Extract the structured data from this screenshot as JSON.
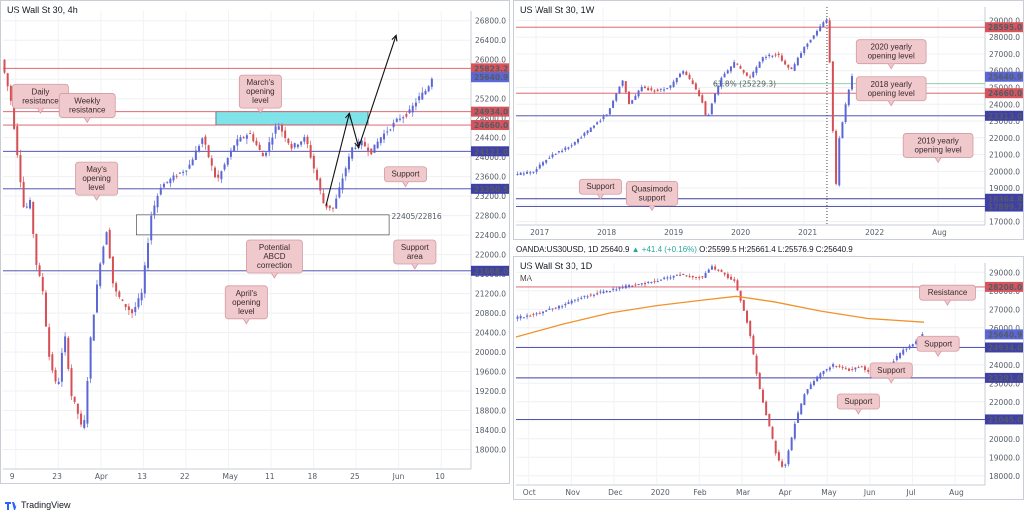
{
  "colors": {
    "bull": "#5b67d6",
    "bear": "#d64f54",
    "resistance_line": "#d8545c",
    "support_line": "#3f3fa8",
    "zone_fill": "#7fe3ea",
    "callout_fill": "#f0c9cd",
    "callout_border": "#d49aa1",
    "ma_line": "#f0932b",
    "fib_line": "#86c89a",
    "arrow": "#111111"
  },
  "footer": {
    "logo_text": "TradingView"
  },
  "chart_data": [
    {
      "id": "h4",
      "type": "candlestick",
      "title": "US Wall St 30, 4h",
      "x_ticks": [
        "9",
        "23",
        "Apr",
        "13",
        "22",
        "May",
        "11",
        "18",
        "25",
        "Jun",
        "10"
      ],
      "y_range": [
        17600,
        27000
      ],
      "y_ticks": [
        18000,
        18400,
        18800,
        19200,
        19600,
        20000,
        20400,
        20800,
        21200,
        21600,
        22000,
        22400,
        22800,
        23200,
        23600,
        24000,
        24400,
        24800,
        25200,
        25600,
        26000,
        26400,
        26800
      ],
      "path": [
        [
          0,
          26000
        ],
        [
          0.02,
          25200
        ],
        [
          0.035,
          24000
        ],
        [
          0.05,
          22800
        ],
        [
          0.06,
          23200
        ],
        [
          0.075,
          21800
        ],
        [
          0.09,
          21200
        ],
        [
          0.1,
          20000
        ],
        [
          0.12,
          19200
        ],
        [
          0.135,
          20400
        ],
        [
          0.15,
          19100
        ],
        [
          0.162,
          18800
        ],
        [
          0.175,
          18300
        ],
        [
          0.19,
          20200
        ],
        [
          0.21,
          21800
        ],
        [
          0.225,
          22500
        ],
        [
          0.24,
          21300
        ],
        [
          0.26,
          21000
        ],
        [
          0.28,
          20800
        ],
        [
          0.3,
          21200
        ],
        [
          0.32,
          22800
        ],
        [
          0.34,
          23400
        ],
        [
          0.37,
          23600
        ],
        [
          0.4,
          23800
        ],
        [
          0.43,
          24400
        ],
        [
          0.46,
          23500
        ],
        [
          0.5,
          24300
        ],
        [
          0.53,
          24500
        ],
        [
          0.56,
          24000
        ],
        [
          0.59,
          24700
        ],
        [
          0.62,
          24200
        ],
        [
          0.65,
          24400
        ],
        [
          0.67,
          23700
        ],
        [
          0.69,
          23000
        ],
        [
          0.71,
          22950
        ],
        [
          0.73,
          23600
        ],
        [
          0.75,
          24200
        ],
        [
          0.77,
          24300
        ],
        [
          0.79,
          24100
        ],
        [
          0.81,
          24400
        ],
        [
          0.83,
          24600
        ],
        [
          0.85,
          24800
        ],
        [
          0.87,
          24900
        ],
        [
          0.89,
          25200
        ],
        [
          0.91,
          25400
        ],
        [
          0.92,
          25640
        ]
      ],
      "levels": [
        {
          "value": 25823.2,
          "label": "25823.2",
          "kind": "resistance"
        },
        {
          "value": 25640.9,
          "label": "25640.9",
          "kind": "current"
        },
        {
          "value": 24934.0,
          "label": "24934.0",
          "kind": "resistance"
        },
        {
          "value": 24660.0,
          "label": "24660.0",
          "kind": "resistance"
        },
        {
          "value": 24121.0,
          "label": "24121.0",
          "kind": "support"
        },
        {
          "value": 23350.5,
          "label": "23350.5",
          "kind": "support"
        },
        {
          "value": 21668.0,
          "label": "21668.0",
          "kind": "support"
        }
      ],
      "zone": {
        "from": 24660,
        "to": 24934
      },
      "support_area": {
        "from": 22405,
        "to": 22816,
        "label": "22405/22816"
      },
      "callouts": [
        {
          "text": [
            "March's",
            "opening",
            "level"
          ],
          "x": 0.55,
          "y": 0.14
        },
        {
          "text": [
            "Daily",
            "resistance"
          ],
          "x": 0.08,
          "y": 0.16
        },
        {
          "text": [
            "Weekly",
            "resistance"
          ],
          "x": 0.18,
          "y": 0.18
        },
        {
          "text": [
            "May's",
            "opening",
            "level"
          ],
          "x": 0.2,
          "y": 0.33
        },
        {
          "text": [
            "Support"
          ],
          "x": 0.86,
          "y": 0.34
        },
        {
          "text": [
            "Potential",
            "ABCD",
            "correction"
          ],
          "x": 0.58,
          "y": 0.5
        },
        {
          "text": [
            "Support",
            "area"
          ],
          "x": 0.88,
          "y": 0.5
        },
        {
          "text": [
            "April's",
            "opening",
            "level"
          ],
          "x": 0.52,
          "y": 0.6
        }
      ]
    },
    {
      "id": "w1",
      "type": "candlestick",
      "title": "US Wall St 30, 1W",
      "x_ticks": [
        "2017",
        "2018",
        "2019",
        "2020",
        "2021",
        "2022",
        "Aug"
      ],
      "y_range": [
        16800,
        29800
      ],
      "y_ticks": [
        17000,
        18000,
        19000,
        20000,
        21000,
        22000,
        23000,
        24000,
        25000,
        26000,
        27000,
        28000,
        29000
      ],
      "path": [
        [
          0,
          19800
        ],
        [
          0.04,
          20000
        ],
        [
          0.08,
          21000
        ],
        [
          0.12,
          21500
        ],
        [
          0.16,
          22500
        ],
        [
          0.2,
          23500
        ],
        [
          0.23,
          25500
        ],
        [
          0.245,
          24000
        ],
        [
          0.27,
          25000
        ],
        [
          0.3,
          24800
        ],
        [
          0.33,
          25000
        ],
        [
          0.36,
          26000
        ],
        [
          0.38,
          25200
        ],
        [
          0.4,
          24200
        ],
        [
          0.41,
          23000
        ],
        [
          0.42,
          24000
        ],
        [
          0.44,
          25500
        ],
        [
          0.47,
          26500
        ],
        [
          0.5,
          25500
        ],
        [
          0.53,
          26800
        ],
        [
          0.56,
          27000
        ],
        [
          0.59,
          26000
        ],
        [
          0.62,
          27500
        ],
        [
          0.65,
          28500
        ],
        [
          0.665,
          29200
        ],
        [
          0.67,
          28000
        ],
        [
          0.68,
          22000
        ],
        [
          0.685,
          18600
        ],
        [
          0.69,
          21500
        ],
        [
          0.7,
          23000
        ],
        [
          0.71,
          24500
        ],
        [
          0.72,
          25640
        ]
      ],
      "levels": [
        {
          "value": 28595.0,
          "label": "28595.0",
          "kind": "resistance"
        },
        {
          "value": 25640.9,
          "label": "25640.9",
          "kind": "current"
        },
        {
          "value": 24660.0,
          "label": "24660.0",
          "kind": "resistance"
        },
        {
          "value": 23313.0,
          "label": "23313.0",
          "kind": "support"
        },
        {
          "value": 18364.8,
          "label": "18364.8",
          "kind": "support"
        },
        {
          "value": 17899.7,
          "label": "17899.7",
          "kind": "support"
        }
      ],
      "fib": {
        "value": 25229.3,
        "label": "61.8% (25229.3)"
      },
      "callouts": [
        {
          "text": [
            "2020 yearly",
            "opening level"
          ],
          "x": 0.8,
          "y": 0.15
        },
        {
          "text": [
            "2018 yearly",
            "opening level"
          ],
          "x": 0.8,
          "y": 0.32
        },
        {
          "text": [
            "2019 yearly",
            "opening level"
          ],
          "x": 0.9,
          "y": 0.58
        },
        {
          "text": [
            "Support"
          ],
          "x": 0.18,
          "y": 0.79
        },
        {
          "text": [
            "Quasimodo",
            "support"
          ],
          "x": 0.29,
          "y": 0.8
        }
      ]
    },
    {
      "id": "d1",
      "type": "candlestick",
      "title": "US Wall St 30, 1D",
      "subtitle": "MA",
      "info": {
        "symbol": "OANDA:US30USD, 1D",
        "last": "25640.9",
        "change": "+41.4 (+0.16%)",
        "o": "25599.5",
        "h": "25661.4",
        "l": "25576.9",
        "c": "25640.9"
      },
      "x_ticks": [
        "Oct",
        "Nov",
        "Dec",
        "2020",
        "Feb",
        "Mar",
        "Apr",
        "May",
        "Jun",
        "Jul",
        "Aug"
      ],
      "y_range": [
        17500,
        29500
      ],
      "y_ticks": [
        18000,
        19000,
        20000,
        21000,
        22000,
        23000,
        24000,
        25000,
        26000,
        27000,
        28000,
        29000
      ],
      "path": [
        [
          0,
          26500
        ],
        [
          0.05,
          26800
        ],
        [
          0.1,
          27200
        ],
        [
          0.15,
          27700
        ],
        [
          0.2,
          28000
        ],
        [
          0.25,
          28300
        ],
        [
          0.3,
          28500
        ],
        [
          0.35,
          28900
        ],
        [
          0.4,
          28700
        ],
        [
          0.42,
          29300
        ],
        [
          0.44,
          29000
        ],
        [
          0.47,
          28500
        ],
        [
          0.5,
          26000
        ],
        [
          0.52,
          23000
        ],
        [
          0.54,
          21000
        ],
        [
          0.56,
          19000
        ],
        [
          0.575,
          18300
        ],
        [
          0.6,
          21000
        ],
        [
          0.62,
          22500
        ],
        [
          0.65,
          23500
        ],
        [
          0.68,
          24000
        ],
        [
          0.71,
          23700
        ],
        [
          0.74,
          23900
        ],
        [
          0.77,
          23300
        ],
        [
          0.8,
          24000
        ],
        [
          0.83,
          24800
        ],
        [
          0.86,
          25300
        ],
        [
          0.87,
          25640
        ]
      ],
      "ma": [
        [
          0,
          25500
        ],
        [
          0.1,
          26200
        ],
        [
          0.2,
          26800
        ],
        [
          0.3,
          27200
        ],
        [
          0.4,
          27500
        ],
        [
          0.47,
          27700
        ],
        [
          0.55,
          27400
        ],
        [
          0.65,
          26900
        ],
        [
          0.75,
          26500
        ],
        [
          0.87,
          26300
        ]
      ],
      "levels": [
        {
          "value": 28208.0,
          "label": "28208.0",
          "kind": "resistance"
        },
        {
          "value": 25640.9,
          "label": "25640.9",
          "kind": "current"
        },
        {
          "value": 24934.0,
          "label": "24934.0",
          "kind": "support"
        },
        {
          "value": 23291.0,
          "label": "23291.0",
          "kind": "support"
        },
        {
          "value": 21045.0,
          "label": "21045.0",
          "kind": "support"
        }
      ],
      "callouts": [
        {
          "text": [
            "Resistance"
          ],
          "x": 0.92,
          "y": 0.1
        },
        {
          "text": [
            "Support"
          ],
          "x": 0.9,
          "y": 0.33
        },
        {
          "text": [
            "Support"
          ],
          "x": 0.8,
          "y": 0.45
        },
        {
          "text": [
            "Support"
          ],
          "x": 0.73,
          "y": 0.59
        }
      ]
    }
  ]
}
